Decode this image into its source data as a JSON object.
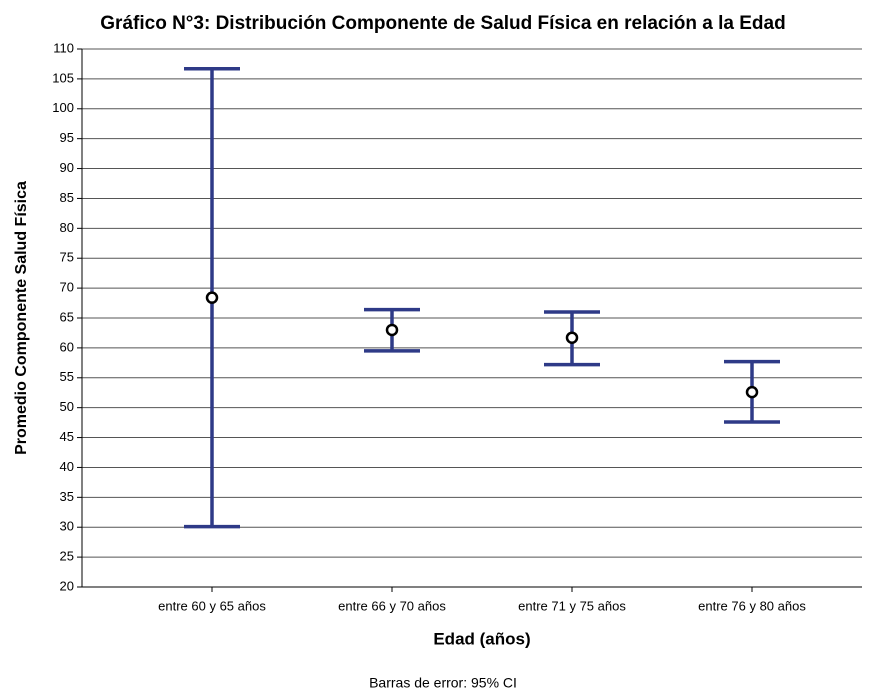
{
  "chart_data": {
    "type": "errorbar",
    "title": "Gráfico N°3:  Distribución Componente de Salud Física en relación a la Edad",
    "x_label": "Edad (años)",
    "y_label": "Promedio Componente Salud Física",
    "footnote": "Barras de error: 95% CI",
    "categories": [
      "entre 60 y 65 años",
      "entre 66 y 70 años",
      "entre 71 y 75 años",
      "entre 76 y 80 años"
    ],
    "values": [
      68.4,
      63.0,
      61.7,
      52.6
    ],
    "ci_lower": [
      30.1,
      59.5,
      57.2,
      47.6
    ],
    "ci_upper": [
      106.7,
      66.4,
      66.0,
      57.7
    ],
    "color": "#2e3a87",
    "ylim": [
      20,
      110
    ],
    "yticks": [
      20,
      25,
      30,
      35,
      40,
      45,
      50,
      55,
      60,
      65,
      70,
      75,
      80,
      85,
      90,
      95,
      100,
      105,
      110
    ],
    "grid": true
  }
}
